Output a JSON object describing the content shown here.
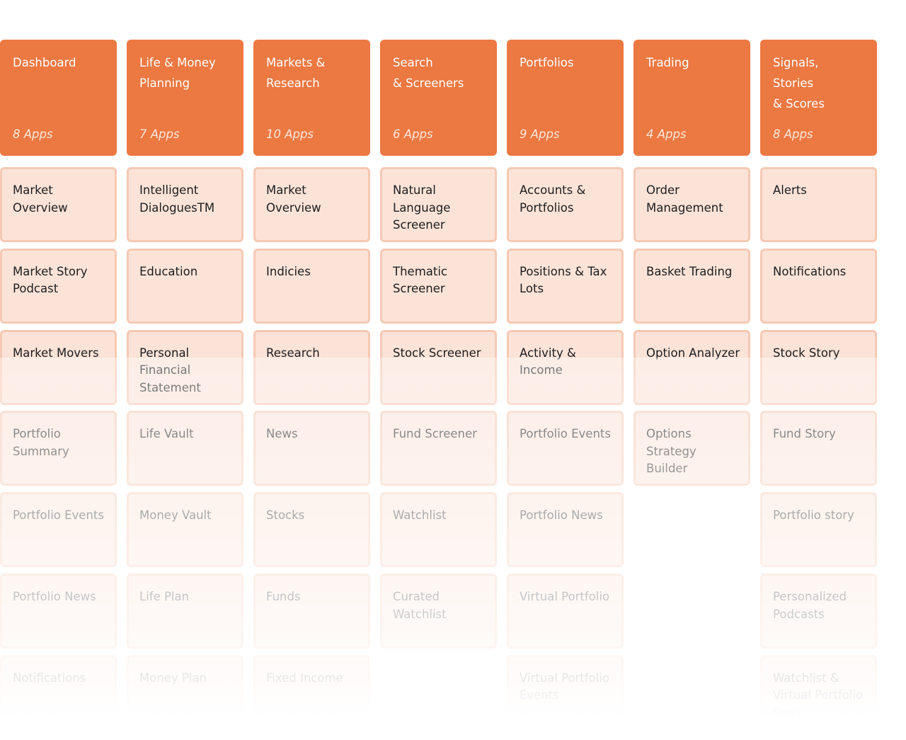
{
  "columns": [
    {
      "title": "Dashboard",
      "count": "8 Apps",
      "apps": [
        "Market Overview",
        "Market Story Podcast",
        "Market Movers",
        "Portfolio Summary",
        "Portfolio Events",
        "Portfolio News",
        "Notifications"
      ]
    },
    {
      "title": "Life & Money Planning",
      "count": "7 Apps",
      "apps": [
        "Intelligent DialoguesTM",
        "Education",
        "Personal Financial Statement",
        "Life Vault",
        "Money Vault",
        "Life Plan",
        "Money Plan"
      ]
    },
    {
      "title": "Markets &\nResearch",
      "count": "10 Apps",
      "apps": [
        "Market Overview",
        "Indicies",
        "Research",
        "News",
        "Stocks",
        "Funds",
        "Fixed Income"
      ]
    },
    {
      "title": "Search\n& Screeners",
      "count": "6 Apps",
      "apps": [
        "Natural Language Screener",
        "Thematic Screener",
        "Stock Screener",
        "Fund Screener",
        "Watchlist",
        "Curated Watchlist"
      ]
    },
    {
      "title": "Portfolios",
      "count": "9 Apps",
      "apps": [
        "Accounts & Portfolios",
        "Positions & Tax Lots",
        "Activity & Income",
        "Portfolio Events",
        "Portfolio News",
        "Virtual Portfolio",
        "Virtual Portfolio Events"
      ]
    },
    {
      "title": "Trading",
      "count": "4 Apps",
      "apps": [
        "Order Management",
        "Basket Trading",
        "Option Analyzer",
        "Options Strategy Builder"
      ]
    },
    {
      "title": "Signals,\nStories\n& Scores",
      "count": "8 Apps",
      "apps": [
        "Alerts",
        "Notifications",
        "Stock Story",
        "Fund Story",
        "Portfolio story",
        "Personalized Podcasts",
        "Watchlist & Virtual Portfolio Story"
      ]
    }
  ]
}
